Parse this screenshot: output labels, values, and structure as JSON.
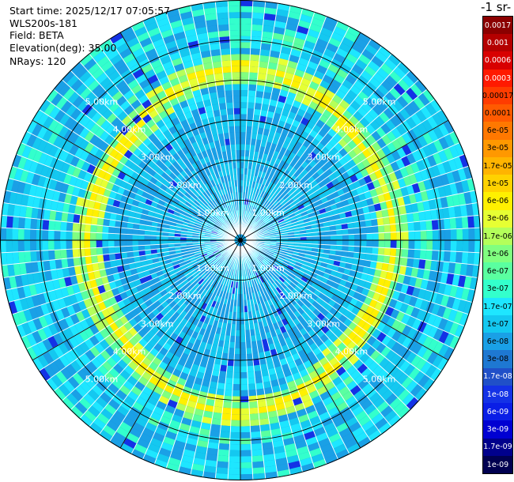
{
  "info": {
    "start_time": "Start time: 2025/12/17 07:05:57",
    "instrument": "WLS200s-181",
    "field": "Field: BETA",
    "elevation": "Elevation(deg): 35.00",
    "nrays": "NRays: 120"
  },
  "colorbar": {
    "title": "-1 sr-",
    "labels": [
      "0.0017",
      "0.001",
      "0.0006",
      "0.0003",
      "0.00017",
      "0.0001",
      "6e-05",
      "3e-05",
      "1.7e-05",
      "1e-05",
      "6e-06",
      "3e-06",
      "1.7e-06",
      "1e-06",
      "6e-07",
      "3e-07",
      "1.7e-07",
      "1e-07",
      "6e-08",
      "3e-08",
      "1.7e-08",
      "1e-08",
      "6e-09",
      "3e-09",
      "1.7e-09",
      "1e-09"
    ],
    "colors": [
      "#8b0000",
      "#b40000",
      "#d80000",
      "#ff1a00",
      "#ff3c00",
      "#ff5a00",
      "#ff7800",
      "#ff9800",
      "#ffb400",
      "#ffd200",
      "#fff000",
      "#e6ff33",
      "#b4ff5a",
      "#80ff80",
      "#5affa0",
      "#33ffcc",
      "#1ee6ff",
      "#14c8f0",
      "#1aa0e6",
      "#1e78d2",
      "#2050c8",
      "#1432e6",
      "#0a1ee6",
      "#0000d2",
      "#00008c",
      "#000050"
    ],
    "text_colors": [
      "#ffffff",
      "#ffffff",
      "#ffffff",
      "#ffffff",
      "#000000",
      "#000000",
      "#000000",
      "#000000",
      "#000000",
      "#000000",
      "#000000",
      "#000000",
      "#000000",
      "#000000",
      "#000000",
      "#000000",
      "#000000",
      "#000000",
      "#000000",
      "#000000",
      "#ffffff",
      "#ffffff",
      "#ffffff",
      "#ffffff",
      "#ffffff",
      "#ffffff"
    ]
  },
  "chart_data": {
    "type": "heatmap",
    "projection": "polar-ppi",
    "field": "BETA",
    "elevation_deg": 35.0,
    "n_rays": 120,
    "range_rings_km": [
      1,
      2,
      3,
      4,
      5
    ],
    "ring_labels": [
      "1.00km",
      "2.00km",
      "3.00km",
      "4.00km",
      "5.00km"
    ],
    "max_range_km": 6.0,
    "spoke_step_deg": 30,
    "background_levels": [
      "1e-08",
      "1.7e-08",
      "3e-08",
      "6e-08",
      "1e-07",
      "1.7e-07",
      "3e-07"
    ],
    "enhanced_bands": [
      {
        "description": "aerosol ring",
        "range_km": [
          3.6,
          4.3
        ],
        "level": "1.7e-07 – 6e-06"
      },
      {
        "description": "outer ring",
        "range_km": [
          4.5,
          5.0
        ],
        "level": "1e-07 – 1e-06"
      }
    ]
  }
}
